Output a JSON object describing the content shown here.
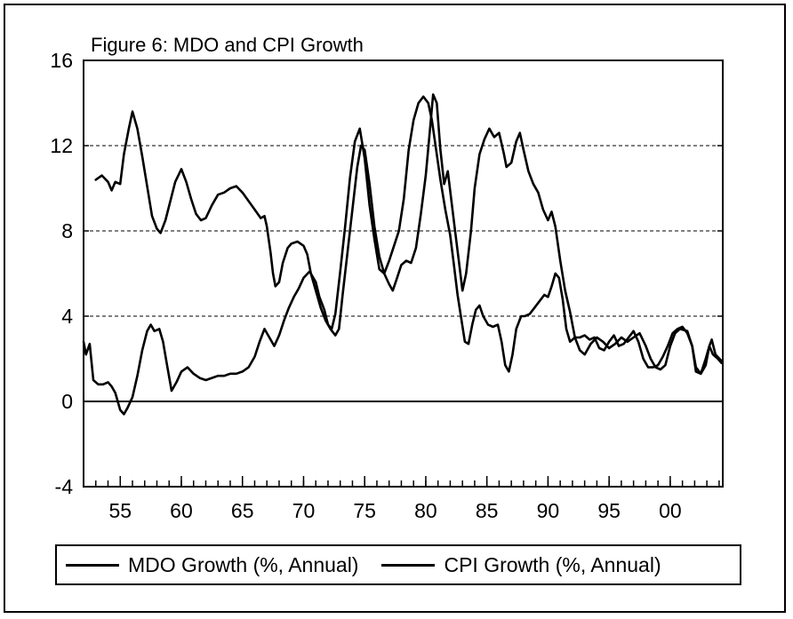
{
  "chart_data": {
    "type": "line",
    "title": "Figure 6: MDO and CPI Growth",
    "xlabel": "",
    "ylabel": "",
    "xlim": [
      1952,
      2004.3
    ],
    "ylim": [
      -4,
      16
    ],
    "yticks": [
      -4,
      0,
      4,
      8,
      12,
      16
    ],
    "xtick_values": [
      1955,
      1960,
      1965,
      1970,
      1975,
      1980,
      1985,
      1990,
      1995,
      2000
    ],
    "xtick_labels": [
      "55",
      "60",
      "65",
      "70",
      "75",
      "80",
      "85",
      "90",
      "95",
      "00"
    ],
    "grid": "horizontal dashed",
    "legend_position": "bottom",
    "line_color": "#000000",
    "series": [
      {
        "name": "MDO Growth (%, Annual)",
        "points": [
          [
            1953.0,
            10.4
          ],
          [
            1953.5,
            10.6
          ],
          [
            1954.0,
            10.3
          ],
          [
            1954.3,
            9.9
          ],
          [
            1954.6,
            10.3
          ],
          [
            1955.0,
            10.2
          ],
          [
            1955.3,
            11.6
          ],
          [
            1955.7,
            12.8
          ],
          [
            1956.0,
            13.6
          ],
          [
            1956.4,
            12.8
          ],
          [
            1956.8,
            11.5
          ],
          [
            1957.2,
            10.1
          ],
          [
            1957.6,
            8.7
          ],
          [
            1958.0,
            8.1
          ],
          [
            1958.3,
            7.9
          ],
          [
            1958.7,
            8.5
          ],
          [
            1959.1,
            9.4
          ],
          [
            1959.5,
            10.3
          ],
          [
            1960.0,
            10.9
          ],
          [
            1960.4,
            10.3
          ],
          [
            1960.8,
            9.5
          ],
          [
            1961.2,
            8.8
          ],
          [
            1961.6,
            8.5
          ],
          [
            1962.0,
            8.6
          ],
          [
            1962.5,
            9.2
          ],
          [
            1963.0,
            9.7
          ],
          [
            1963.5,
            9.8
          ],
          [
            1964.0,
            10.0
          ],
          [
            1964.5,
            10.1
          ],
          [
            1965.0,
            9.8
          ],
          [
            1965.5,
            9.4
          ],
          [
            1966.0,
            9.0
          ],
          [
            1966.5,
            8.6
          ],
          [
            1966.8,
            8.7
          ],
          [
            1967.0,
            8.2
          ],
          [
            1967.3,
            7.0
          ],
          [
            1967.5,
            6.0
          ],
          [
            1967.7,
            5.4
          ],
          [
            1968.0,
            5.6
          ],
          [
            1968.3,
            6.5
          ],
          [
            1968.7,
            7.2
          ],
          [
            1969.0,
            7.4
          ],
          [
            1969.5,
            7.5
          ],
          [
            1970.0,
            7.3
          ],
          [
            1970.3,
            6.9
          ],
          [
            1970.6,
            6.0
          ],
          [
            1971.0,
            5.2
          ],
          [
            1971.4,
            4.4
          ],
          [
            1971.8,
            3.8
          ],
          [
            1972.2,
            3.4
          ],
          [
            1972.6,
            3.1
          ],
          [
            1972.9,
            3.4
          ],
          [
            1973.2,
            5.0
          ],
          [
            1973.6,
            7.0
          ],
          [
            1974.0,
            9.0
          ],
          [
            1974.4,
            11.0
          ],
          [
            1974.7,
            12.0
          ],
          [
            1975.0,
            11.8
          ],
          [
            1975.4,
            10.2
          ],
          [
            1975.8,
            8.2
          ],
          [
            1976.2,
            6.8
          ],
          [
            1976.6,
            6.0
          ],
          [
            1977.0,
            5.5
          ],
          [
            1977.3,
            5.2
          ],
          [
            1977.6,
            5.7
          ],
          [
            1978.0,
            6.4
          ],
          [
            1978.4,
            6.6
          ],
          [
            1978.8,
            6.5
          ],
          [
            1979.2,
            7.2
          ],
          [
            1979.6,
            8.8
          ],
          [
            1980.0,
            10.6
          ],
          [
            1980.3,
            12.5
          ],
          [
            1980.6,
            14.4
          ],
          [
            1980.9,
            14.0
          ],
          [
            1981.2,
            11.8
          ],
          [
            1981.5,
            10.2
          ],
          [
            1981.8,
            10.8
          ],
          [
            1982.1,
            9.4
          ],
          [
            1982.4,
            8.0
          ],
          [
            1982.7,
            6.6
          ],
          [
            1983.0,
            5.2
          ],
          [
            1983.3,
            6.0
          ],
          [
            1983.7,
            8.0
          ],
          [
            1984.0,
            10.0
          ],
          [
            1984.4,
            11.6
          ],
          [
            1984.8,
            12.3
          ],
          [
            1985.2,
            12.8
          ],
          [
            1985.6,
            12.4
          ],
          [
            1986.0,
            12.6
          ],
          [
            1986.4,
            11.6
          ],
          [
            1986.6,
            11.0
          ],
          [
            1987.0,
            11.2
          ],
          [
            1987.4,
            12.2
          ],
          [
            1987.7,
            12.6
          ],
          [
            1988.0,
            11.8
          ],
          [
            1988.4,
            10.8
          ],
          [
            1988.8,
            10.2
          ],
          [
            1989.2,
            9.8
          ],
          [
            1989.6,
            9.0
          ],
          [
            1990.0,
            8.5
          ],
          [
            1990.3,
            8.9
          ],
          [
            1990.6,
            8.2
          ],
          [
            1991.0,
            6.6
          ],
          [
            1991.4,
            5.2
          ],
          [
            1991.8,
            4.2
          ],
          [
            1992.2,
            3.0
          ],
          [
            1992.6,
            2.4
          ],
          [
            1993.0,
            2.2
          ],
          [
            1993.5,
            2.7
          ],
          [
            1994.0,
            3.0
          ],
          [
            1994.5,
            2.8
          ],
          [
            1995.0,
            2.5
          ],
          [
            1995.5,
            2.7
          ],
          [
            1996.0,
            3.0
          ],
          [
            1996.5,
            2.8
          ],
          [
            1997.0,
            3.0
          ],
          [
            1997.5,
            3.2
          ],
          [
            1998.0,
            2.6
          ],
          [
            1998.4,
            2.0
          ],
          [
            1998.8,
            1.6
          ],
          [
            1999.2,
            1.5
          ],
          [
            1999.6,
            1.7
          ],
          [
            2000.0,
            2.6
          ],
          [
            2000.4,
            3.2
          ],
          [
            2000.8,
            3.4
          ],
          [
            2001.4,
            3.3
          ],
          [
            2001.8,
            2.6
          ],
          [
            2002.1,
            1.6
          ],
          [
            2002.5,
            1.3
          ],
          [
            2002.9,
            1.7
          ],
          [
            2003.2,
            2.6
          ],
          [
            2003.4,
            2.9
          ],
          [
            2003.7,
            2.2
          ],
          [
            2004.2,
            1.9
          ]
        ]
      },
      {
        "name": "CPI Growth (%, Annual)",
        "points": [
          [
            1952.0,
            2.8
          ],
          [
            1952.2,
            2.2
          ],
          [
            1952.5,
            2.7
          ],
          [
            1952.8,
            1.0
          ],
          [
            1953.2,
            0.8
          ],
          [
            1953.6,
            0.8
          ],
          [
            1954.0,
            0.9
          ],
          [
            1954.3,
            0.7
          ],
          [
            1954.6,
            0.4
          ],
          [
            1955.0,
            -0.4
          ],
          [
            1955.3,
            -0.6
          ],
          [
            1955.6,
            -0.3
          ],
          [
            1956.0,
            0.2
          ],
          [
            1956.4,
            1.2
          ],
          [
            1956.8,
            2.4
          ],
          [
            1957.2,
            3.3
          ],
          [
            1957.5,
            3.6
          ],
          [
            1957.8,
            3.3
          ],
          [
            1958.2,
            3.4
          ],
          [
            1958.5,
            2.8
          ],
          [
            1958.8,
            1.8
          ],
          [
            1959.2,
            0.5
          ],
          [
            1959.6,
            0.9
          ],
          [
            1960.0,
            1.4
          ],
          [
            1960.5,
            1.6
          ],
          [
            1961.0,
            1.3
          ],
          [
            1961.5,
            1.1
          ],
          [
            1962.0,
            1.0
          ],
          [
            1962.5,
            1.1
          ],
          [
            1963.0,
            1.2
          ],
          [
            1963.5,
            1.2
          ],
          [
            1964.0,
            1.3
          ],
          [
            1964.5,
            1.3
          ],
          [
            1965.0,
            1.4
          ],
          [
            1965.5,
            1.6
          ],
          [
            1966.0,
            2.1
          ],
          [
            1966.4,
            2.8
          ],
          [
            1966.8,
            3.4
          ],
          [
            1967.2,
            3.0
          ],
          [
            1967.6,
            2.6
          ],
          [
            1968.0,
            3.1
          ],
          [
            1968.4,
            3.8
          ],
          [
            1968.8,
            4.4
          ],
          [
            1969.2,
            4.9
          ],
          [
            1969.6,
            5.3
          ],
          [
            1970.0,
            5.8
          ],
          [
            1970.5,
            6.1
          ],
          [
            1971.0,
            5.6
          ],
          [
            1971.3,
            4.9
          ],
          [
            1971.7,
            4.3
          ],
          [
            1972.0,
            3.6
          ],
          [
            1972.3,
            3.4
          ],
          [
            1972.6,
            4.1
          ],
          [
            1973.0,
            6.1
          ],
          [
            1973.4,
            8.2
          ],
          [
            1973.8,
            10.5
          ],
          [
            1974.2,
            12.2
          ],
          [
            1974.6,
            12.8
          ],
          [
            1975.0,
            11.4
          ],
          [
            1975.4,
            9.2
          ],
          [
            1975.8,
            7.6
          ],
          [
            1976.2,
            6.2
          ],
          [
            1976.6,
            6.0
          ],
          [
            1977.0,
            6.6
          ],
          [
            1977.4,
            7.3
          ],
          [
            1977.8,
            8.0
          ],
          [
            1978.2,
            9.5
          ],
          [
            1978.6,
            11.8
          ],
          [
            1979.0,
            13.2
          ],
          [
            1979.4,
            14.0
          ],
          [
            1979.8,
            14.3
          ],
          [
            1980.2,
            14.0
          ],
          [
            1980.5,
            13.2
          ],
          [
            1980.8,
            12.0
          ],
          [
            1981.2,
            10.4
          ],
          [
            1981.6,
            9.0
          ],
          [
            1982.0,
            7.8
          ],
          [
            1982.3,
            6.4
          ],
          [
            1982.6,
            5.0
          ],
          [
            1982.9,
            3.9
          ],
          [
            1983.2,
            2.8
          ],
          [
            1983.5,
            2.7
          ],
          [
            1983.8,
            3.6
          ],
          [
            1984.1,
            4.3
          ],
          [
            1984.4,
            4.5
          ],
          [
            1984.7,
            4.0
          ],
          [
            1985.1,
            3.6
          ],
          [
            1985.5,
            3.5
          ],
          [
            1985.9,
            3.6
          ],
          [
            1986.2,
            2.8
          ],
          [
            1986.5,
            1.7
          ],
          [
            1986.8,
            1.4
          ],
          [
            1987.1,
            2.2
          ],
          [
            1987.4,
            3.4
          ],
          [
            1987.8,
            4.0
          ],
          [
            1988.1,
            4.0
          ],
          [
            1988.5,
            4.1
          ],
          [
            1988.9,
            4.4
          ],
          [
            1989.3,
            4.7
          ],
          [
            1989.7,
            5.0
          ],
          [
            1990.0,
            4.9
          ],
          [
            1990.3,
            5.4
          ],
          [
            1990.6,
            6.0
          ],
          [
            1990.9,
            5.8
          ],
          [
            1991.2,
            4.8
          ],
          [
            1991.5,
            3.4
          ],
          [
            1991.8,
            2.8
          ],
          [
            1992.2,
            3.0
          ],
          [
            1992.6,
            3.0
          ],
          [
            1993.0,
            3.1
          ],
          [
            1993.4,
            2.9
          ],
          [
            1993.8,
            3.0
          ],
          [
            1994.2,
            2.5
          ],
          [
            1994.6,
            2.4
          ],
          [
            1995.0,
            2.8
          ],
          [
            1995.4,
            3.1
          ],
          [
            1995.8,
            2.6
          ],
          [
            1996.2,
            2.7
          ],
          [
            1996.6,
            3.0
          ],
          [
            1997.0,
            3.3
          ],
          [
            1997.4,
            2.8
          ],
          [
            1997.8,
            2.0
          ],
          [
            1998.2,
            1.6
          ],
          [
            1998.6,
            1.6
          ],
          [
            1999.0,
            1.7
          ],
          [
            1999.4,
            2.1
          ],
          [
            1999.8,
            2.6
          ],
          [
            2000.2,
            3.2
          ],
          [
            2000.6,
            3.4
          ],
          [
            2001.0,
            3.5
          ],
          [
            2001.4,
            3.2
          ],
          [
            2001.8,
            2.6
          ],
          [
            2002.1,
            1.4
          ],
          [
            2002.5,
            1.3
          ],
          [
            2002.9,
            2.0
          ],
          [
            2003.2,
            2.6
          ],
          [
            2003.5,
            2.2
          ],
          [
            2003.9,
            2.0
          ],
          [
            2004.2,
            1.8
          ]
        ]
      }
    ]
  }
}
